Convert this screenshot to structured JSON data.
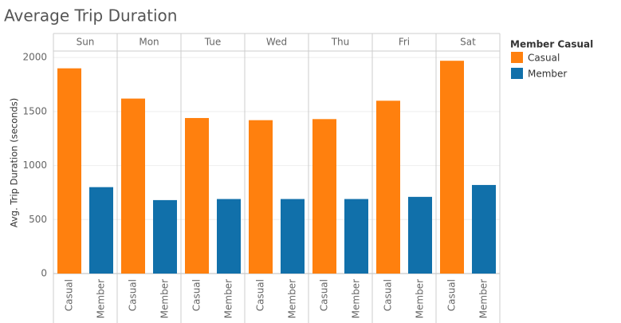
{
  "chart_data": {
    "type": "bar",
    "title": "Average Trip Duration",
    "y_label": "Avg. Trip Duration (seconds)",
    "legend_title": "Member Casual",
    "categories": [
      "Sun",
      "Mon",
      "Tue",
      "Wed",
      "Thu",
      "Fri",
      "Sat"
    ],
    "series": [
      {
        "name": "Casual",
        "color": "#ff800e",
        "values": [
          1900,
          1620,
          1440,
          1420,
          1430,
          1600,
          1970
        ]
      },
      {
        "name": "Member",
        "color": "#1170aa",
        "values": [
          800,
          680,
          690,
          690,
          690,
          710,
          820
        ]
      }
    ],
    "ylim": [
      0,
      2060
    ],
    "yticks": [
      0,
      500,
      1000,
      1500,
      2000
    ],
    "grid": true
  }
}
